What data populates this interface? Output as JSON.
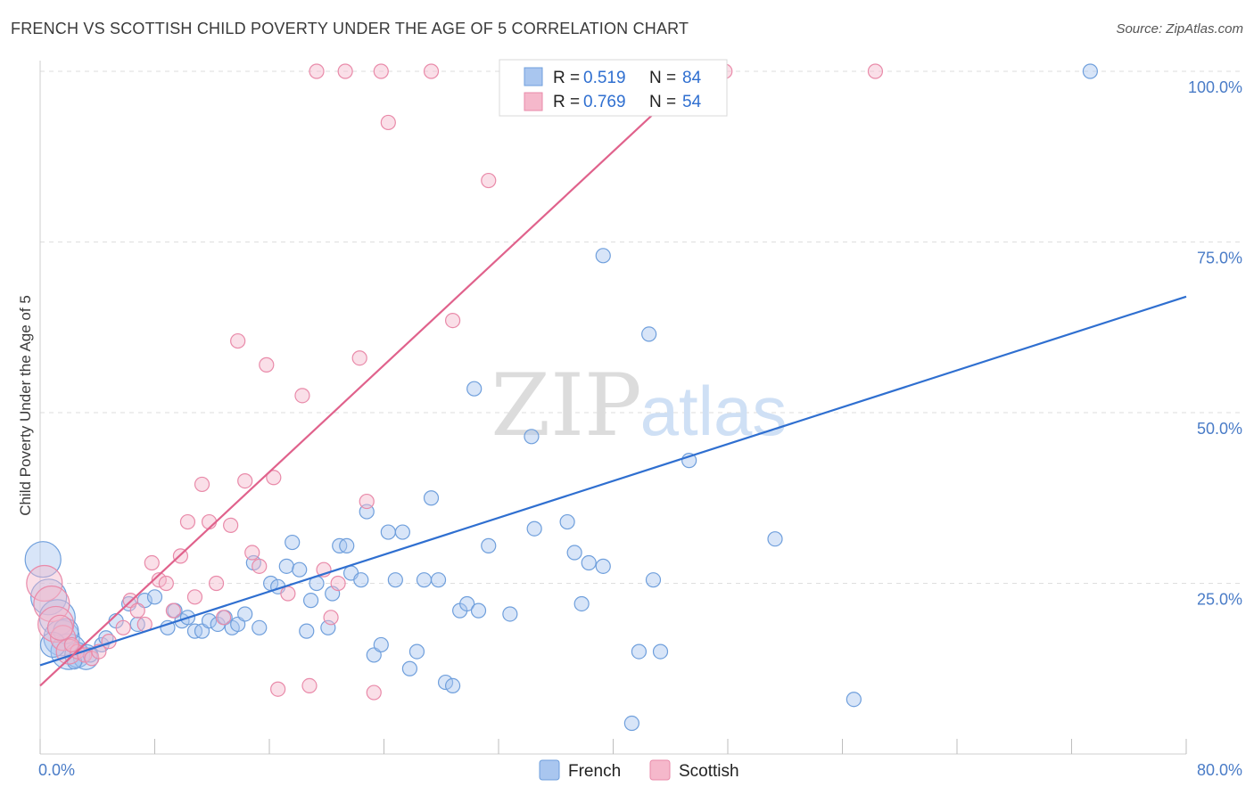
{
  "title": "FRENCH VS SCOTTISH CHILD POVERTY UNDER THE AGE OF 5 CORRELATION CHART",
  "source": "Source: ZipAtlas.com",
  "watermark": {
    "zip": "ZIP",
    "atlas": "atlas"
  },
  "legend": {
    "french": {
      "r_label": "R =",
      "r_value": "0.519",
      "n_label": "N =",
      "n_value": "84"
    },
    "scottish": {
      "r_label": "R =",
      "r_value": "0.769",
      "n_label": "N =",
      "n_value": "54"
    }
  },
  "colors": {
    "french_fill": "#a9c6ef",
    "french_stroke": "#6f9fdc",
    "french_line": "#2f6fd0",
    "scottish_fill": "#f5b8cb",
    "scottish_stroke": "#e98aa9",
    "scottish_line": "#e0628c",
    "grid": "#dedede",
    "tick_text": "#4a7cc7"
  },
  "chart_data": {
    "type": "scatter",
    "ylabel": "Child Poverty Under the Age of 5",
    "xlim": [
      0,
      80
    ],
    "ylim": [
      0,
      100
    ],
    "x_tick_labels": [
      "0.0%",
      "80.0%"
    ],
    "y_ticks": [
      25,
      50,
      75,
      100
    ],
    "y_tick_labels": [
      "25.0%",
      "50.0%",
      "75.0%",
      "100.0%"
    ],
    "grid": true,
    "legend_position": "top-center",
    "series": [
      {
        "name": "French",
        "trend": {
          "x": [
            0,
            80
          ],
          "y": [
            13,
            67
          ]
        },
        "points": [
          {
            "x": 0.2,
            "y": 28.5,
            "s": "l"
          },
          {
            "x": 0.6,
            "y": 23,
            "s": "l"
          },
          {
            "x": 1.2,
            "y": 20,
            "s": "l"
          },
          {
            "x": 1.5,
            "y": 17,
            "s": "l"
          },
          {
            "x": 2,
            "y": 15,
            "s": "l"
          },
          {
            "x": 2.6,
            "y": 14.5,
            "s": "m"
          },
          {
            "x": 3.2,
            "y": 14.2,
            "s": "m"
          },
          {
            "x": 3.5,
            "y": 14.5,
            "s": "n"
          },
          {
            "x": 4.3,
            "y": 16,
            "s": "n"
          },
          {
            "x": 4.6,
            "y": 17,
            "s": "n"
          },
          {
            "x": 5.3,
            "y": 19.5,
            "s": "n"
          },
          {
            "x": 6.2,
            "y": 22,
            "s": "n"
          },
          {
            "x": 6.8,
            "y": 19,
            "s": "n"
          },
          {
            "x": 7.3,
            "y": 22.5,
            "s": "n"
          },
          {
            "x": 8,
            "y": 23,
            "s": "n"
          },
          {
            "x": 8.9,
            "y": 18.5,
            "s": "n"
          },
          {
            "x": 9.4,
            "y": 21,
            "s": "n"
          },
          {
            "x": 9.9,
            "y": 19.5,
            "s": "n"
          },
          {
            "x": 10.3,
            "y": 20,
            "s": "n"
          },
          {
            "x": 10.8,
            "y": 18,
            "s": "n"
          },
          {
            "x": 11.3,
            "y": 18,
            "s": "n"
          },
          {
            "x": 11.8,
            "y": 19.5,
            "s": "n"
          },
          {
            "x": 12.4,
            "y": 19,
            "s": "n"
          },
          {
            "x": 12.9,
            "y": 20,
            "s": "n"
          },
          {
            "x": 13.4,
            "y": 18.5,
            "s": "n"
          },
          {
            "x": 13.8,
            "y": 19,
            "s": "n"
          },
          {
            "x": 14.3,
            "y": 20.5,
            "s": "n"
          },
          {
            "x": 15.3,
            "y": 18.5,
            "s": "n"
          },
          {
            "x": 16.1,
            "y": 25,
            "s": "n"
          },
          {
            "x": 16.6,
            "y": 24.5,
            "s": "n"
          },
          {
            "x": 14.9,
            "y": 28,
            "s": "n"
          },
          {
            "x": 17.2,
            "y": 27.5,
            "s": "n"
          },
          {
            "x": 17.6,
            "y": 31,
            "s": "n"
          },
          {
            "x": 18.1,
            "y": 27,
            "s": "n"
          },
          {
            "x": 18.6,
            "y": 18,
            "s": "n"
          },
          {
            "x": 18.9,
            "y": 22.5,
            "s": "n"
          },
          {
            "x": 19.3,
            "y": 25,
            "s": "n"
          },
          {
            "x": 20.1,
            "y": 18.5,
            "s": "n"
          },
          {
            "x": 20.4,
            "y": 23.5,
            "s": "n"
          },
          {
            "x": 20.9,
            "y": 30.5,
            "s": "n"
          },
          {
            "x": 21.4,
            "y": 30.5,
            "s": "n"
          },
          {
            "x": 21.7,
            "y": 26.5,
            "s": "n"
          },
          {
            "x": 22.4,
            "y": 25.5,
            "s": "n"
          },
          {
            "x": 22.8,
            "y": 35.5,
            "s": "n"
          },
          {
            "x": 23.3,
            "y": 14.5,
            "s": "n"
          },
          {
            "x": 23.8,
            "y": 16,
            "s": "n"
          },
          {
            "x": 24.3,
            "y": 32.5,
            "s": "n"
          },
          {
            "x": 24.8,
            "y": 25.5,
            "s": "n"
          },
          {
            "x": 25.3,
            "y": 32.5,
            "s": "n"
          },
          {
            "x": 25.8,
            "y": 12.5,
            "s": "n"
          },
          {
            "x": 26.3,
            "y": 15,
            "s": "n"
          },
          {
            "x": 26.8,
            "y": 25.5,
            "s": "n"
          },
          {
            "x": 27.3,
            "y": 37.5,
            "s": "n"
          },
          {
            "x": 27.8,
            "y": 25.5,
            "s": "n"
          },
          {
            "x": 28.3,
            "y": 10.5,
            "s": "n"
          },
          {
            "x": 28.8,
            "y": 10,
            "s": "n"
          },
          {
            "x": 29.3,
            "y": 21,
            "s": "n"
          },
          {
            "x": 29.8,
            "y": 22,
            "s": "n"
          },
          {
            "x": 30.3,
            "y": 53.5,
            "s": "n"
          },
          {
            "x": 30.6,
            "y": 21,
            "s": "n"
          },
          {
            "x": 31.3,
            "y": 30.5,
            "s": "n"
          },
          {
            "x": 32.8,
            "y": 20.5,
            "s": "n"
          },
          {
            "x": 34.3,
            "y": 46.5,
            "s": "n"
          },
          {
            "x": 34.5,
            "y": 33,
            "s": "n"
          },
          {
            "x": 36.8,
            "y": 34,
            "s": "n"
          },
          {
            "x": 37.3,
            "y": 29.5,
            "s": "n"
          },
          {
            "x": 37.8,
            "y": 22,
            "s": "n"
          },
          {
            "x": 38.3,
            "y": 28,
            "s": "n"
          },
          {
            "x": 39.3,
            "y": 27.5,
            "s": "n"
          },
          {
            "x": 39.8,
            "y": 100,
            "s": "n"
          },
          {
            "x": 39.3,
            "y": 73,
            "s": "n"
          },
          {
            "x": 41.3,
            "y": 4.5,
            "s": "n"
          },
          {
            "x": 41.8,
            "y": 15,
            "s": "n"
          },
          {
            "x": 42.5,
            "y": 61.5,
            "s": "n"
          },
          {
            "x": 42.8,
            "y": 25.5,
            "s": "n"
          },
          {
            "x": 43.3,
            "y": 15,
            "s": "n"
          },
          {
            "x": 45.3,
            "y": 43,
            "s": "n"
          },
          {
            "x": 46.3,
            "y": 100,
            "s": "n"
          },
          {
            "x": 51.3,
            "y": 31.5,
            "s": "n"
          },
          {
            "x": 56.8,
            "y": 8,
            "s": "n"
          },
          {
            "x": 73.3,
            "y": 100,
            "s": "n"
          },
          {
            "x": 1.8,
            "y": 18,
            "s": "m"
          },
          {
            "x": 0.9,
            "y": 16,
            "s": "m"
          },
          {
            "x": 2.4,
            "y": 13.5,
            "s": "n"
          }
        ]
      },
      {
        "name": "Scottish",
        "trend": {
          "x": [
            0,
            46
          ],
          "y": [
            10,
            100
          ]
        },
        "points": [
          {
            "x": 0.3,
            "y": 25,
            "s": "l"
          },
          {
            "x": 0.8,
            "y": 22,
            "s": "l"
          },
          {
            "x": 1.1,
            "y": 19,
            "s": "l"
          },
          {
            "x": 1.6,
            "y": 17,
            "s": "m"
          },
          {
            "x": 2,
            "y": 15,
            "s": "m"
          },
          {
            "x": 2.6,
            "y": 15,
            "s": "n"
          },
          {
            "x": 3.1,
            "y": 14.5,
            "s": "n"
          },
          {
            "x": 3.6,
            "y": 14,
            "s": "n"
          },
          {
            "x": 4.1,
            "y": 15,
            "s": "n"
          },
          {
            "x": 4.8,
            "y": 16.5,
            "s": "n"
          },
          {
            "x": 5.8,
            "y": 18.5,
            "s": "n"
          },
          {
            "x": 6.3,
            "y": 22.5,
            "s": "n"
          },
          {
            "x": 6.8,
            "y": 21,
            "s": "n"
          },
          {
            "x": 7.3,
            "y": 19,
            "s": "n"
          },
          {
            "x": 7.8,
            "y": 28,
            "s": "n"
          },
          {
            "x": 8.3,
            "y": 25.5,
            "s": "n"
          },
          {
            "x": 8.8,
            "y": 25,
            "s": "n"
          },
          {
            "x": 9.3,
            "y": 21,
            "s": "n"
          },
          {
            "x": 9.8,
            "y": 29,
            "s": "n"
          },
          {
            "x": 10.3,
            "y": 34,
            "s": "n"
          },
          {
            "x": 10.8,
            "y": 23,
            "s": "n"
          },
          {
            "x": 11.3,
            "y": 39.5,
            "s": "n"
          },
          {
            "x": 11.8,
            "y": 34,
            "s": "n"
          },
          {
            "x": 12.3,
            "y": 25,
            "s": "n"
          },
          {
            "x": 12.8,
            "y": 20,
            "s": "n"
          },
          {
            "x": 13.3,
            "y": 33.5,
            "s": "n"
          },
          {
            "x": 13.8,
            "y": 60.5,
            "s": "n"
          },
          {
            "x": 14.3,
            "y": 40,
            "s": "n"
          },
          {
            "x": 14.8,
            "y": 29.5,
            "s": "n"
          },
          {
            "x": 15.3,
            "y": 27.5,
            "s": "n"
          },
          {
            "x": 15.8,
            "y": 57,
            "s": "n"
          },
          {
            "x": 16.3,
            "y": 40.5,
            "s": "n"
          },
          {
            "x": 16.6,
            "y": 9.5,
            "s": "n"
          },
          {
            "x": 17.3,
            "y": 23.5,
            "s": "n"
          },
          {
            "x": 18.3,
            "y": 52.5,
            "s": "n"
          },
          {
            "x": 18.8,
            "y": 10,
            "s": "n"
          },
          {
            "x": 19.3,
            "y": 100,
            "s": "n"
          },
          {
            "x": 19.8,
            "y": 27,
            "s": "n"
          },
          {
            "x": 20.3,
            "y": 20,
            "s": "n"
          },
          {
            "x": 20.8,
            "y": 25,
            "s": "n"
          },
          {
            "x": 21.3,
            "y": 100,
            "s": "n"
          },
          {
            "x": 22.3,
            "y": 58,
            "s": "n"
          },
          {
            "x": 22.8,
            "y": 37,
            "s": "n"
          },
          {
            "x": 23.3,
            "y": 9,
            "s": "n"
          },
          {
            "x": 23.8,
            "y": 100,
            "s": "n"
          },
          {
            "x": 24.3,
            "y": 92.5,
            "s": "n"
          },
          {
            "x": 27.3,
            "y": 100,
            "s": "n"
          },
          {
            "x": 28.8,
            "y": 63.5,
            "s": "n"
          },
          {
            "x": 31.3,
            "y": 84,
            "s": "n"
          },
          {
            "x": 40.8,
            "y": 100,
            "s": "n"
          },
          {
            "x": 47.8,
            "y": 100,
            "s": "n"
          },
          {
            "x": 58.3,
            "y": 100,
            "s": "n"
          },
          {
            "x": 1.4,
            "y": 18.5,
            "s": "m"
          },
          {
            "x": 2.2,
            "y": 16,
            "s": "n"
          }
        ]
      }
    ]
  }
}
